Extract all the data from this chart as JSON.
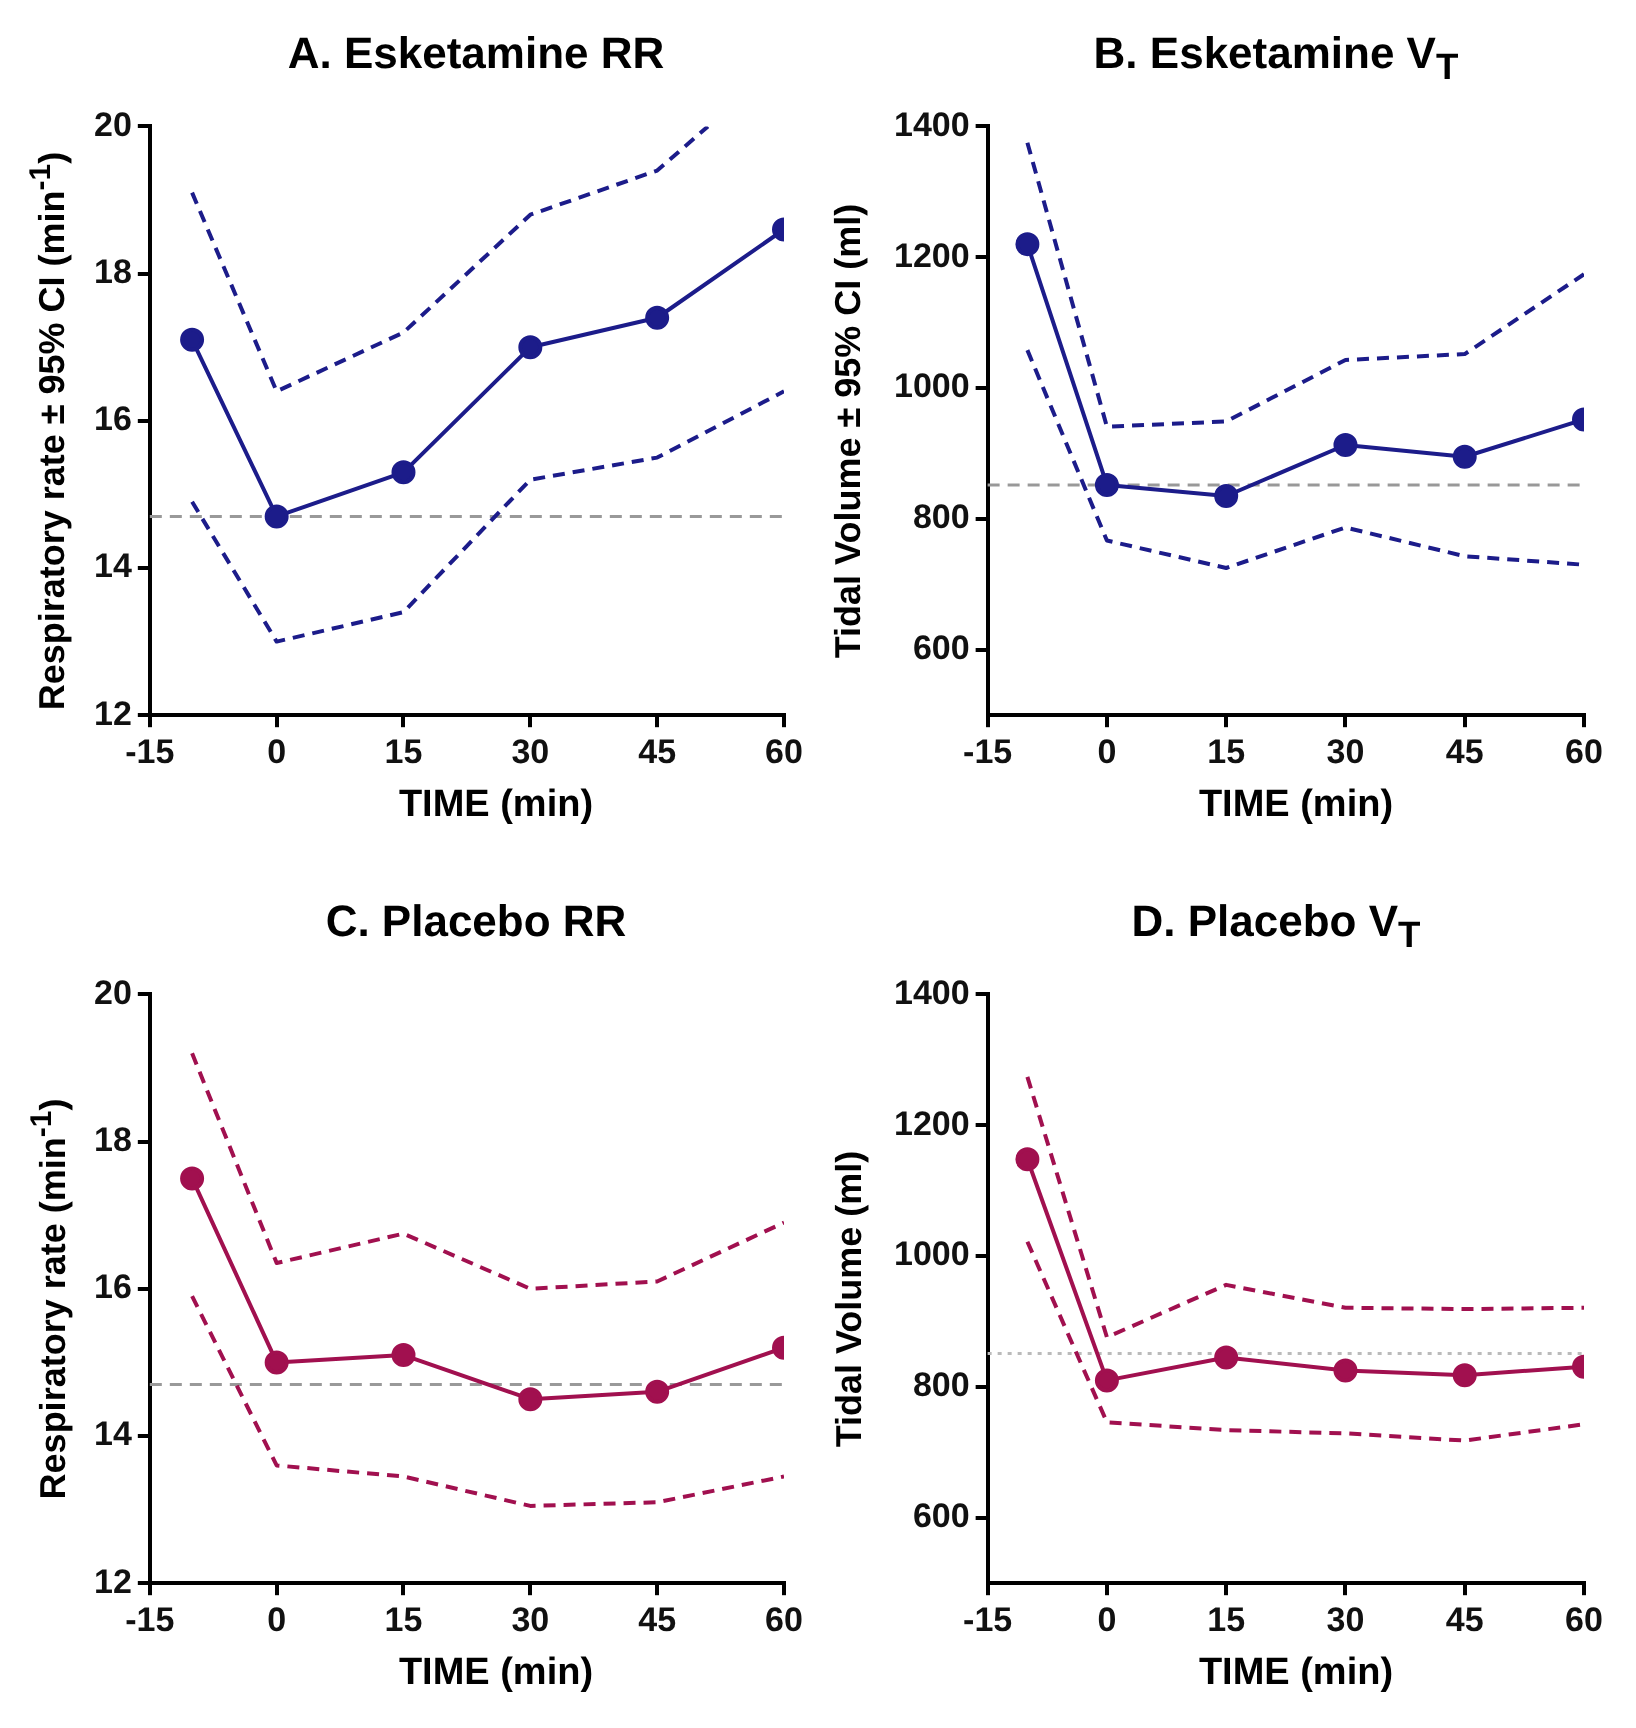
{
  "chart_data": [
    {
      "type": "line",
      "title": "A. Esketamine RR",
      "xlabel": "TIME (min)",
      "ylabel": "Respiratory rate ± 95% CI (min$^{-1}$)",
      "x": [
        -10,
        0,
        15,
        30,
        45,
        60
      ],
      "xlim": [
        -15,
        60
      ],
      "xticks": [
        -15,
        0,
        15,
        30,
        45,
        60
      ],
      "ylim": [
        12,
        20
      ],
      "yticks": [
        12,
        14,
        16,
        18,
        20
      ],
      "grid": false,
      "legend": false,
      "series": [
        {
          "color": "#1c1c8a",
          "values": [
            17.1,
            14.7,
            15.3,
            17.0,
            17.4,
            18.6
          ],
          "marker": "circle",
          "line_style": "solid"
        },
        {
          "color": "#1c1c8a",
          "x": [
            -10,
            0,
            15,
            30,
            45,
            51
          ],
          "values": [
            19.1,
            16.4,
            17.2,
            18.8,
            19.4,
            20.0
          ],
          "marker": "none",
          "line_style": "dashed"
        },
        {
          "color": "#1c1c8a",
          "values": [
            14.9,
            13.0,
            13.4,
            15.2,
            15.5,
            16.4
          ],
          "marker": "none",
          "line_style": "dashed"
        }
      ],
      "ref_lines": [
        {
          "axis": "y",
          "value": 14.7,
          "color": "#999999",
          "line_style": "dashed"
        }
      ]
    },
    {
      "type": "line",
      "title": "B. Esketamine V$_{T}$",
      "xlabel": "TIME (min)",
      "ylabel": "Tidal Volume ± 95% CI (ml)",
      "x": [
        -10,
        0,
        15,
        30,
        45,
        60
      ],
      "xlim": [
        -15,
        60
      ],
      "xticks": [
        -15,
        0,
        15,
        30,
        45,
        60
      ],
      "ylim": [
        500,
        1400
      ],
      "yticks": [
        600,
        800,
        1000,
        1200,
        1400
      ],
      "grid": false,
      "legend": false,
      "series": [
        {
          "color": "#1c1c8a",
          "values": [
            1220,
            852,
            835,
            913,
            895,
            952
          ],
          "marker": "circle",
          "line_style": "solid"
        },
        {
          "color": "#1c1c8a",
          "values": [
            1375,
            941,
            949,
            1043,
            1052,
            1174
          ],
          "marker": "none",
          "line_style": "dashed"
        },
        {
          "color": "#1c1c8a",
          "values": [
            1058,
            767,
            725,
            787,
            743,
            730
          ],
          "marker": "none",
          "line_style": "dashed"
        }
      ],
      "ref_lines": [
        {
          "axis": "y",
          "value": 852,
          "color": "#999999",
          "line_style": "dashed"
        }
      ]
    },
    {
      "type": "line",
      "title": "C. Placebo RR",
      "xlabel": "TIME (min)",
      "ylabel": "Respiratory rate (min$^{-1}$)",
      "x": [
        -10,
        0,
        15,
        30,
        45,
        60
      ],
      "xlim": [
        -15,
        60
      ],
      "xticks": [
        -15,
        0,
        15,
        30,
        45,
        60
      ],
      "ylim": [
        12,
        20
      ],
      "yticks": [
        12,
        14,
        16,
        18,
        20
      ],
      "grid": false,
      "legend": false,
      "series": [
        {
          "color": "#a1104f",
          "values": [
            17.5,
            15.0,
            15.1,
            14.5,
            14.6,
            15.2
          ],
          "marker": "circle",
          "line_style": "solid"
        },
        {
          "color": "#a1104f",
          "values": [
            19.2,
            16.35,
            16.75,
            16.0,
            16.1,
            16.9
          ],
          "marker": "none",
          "line_style": "dashed"
        },
        {
          "color": "#a1104f",
          "values": [
            15.9,
            13.6,
            13.45,
            13.05,
            13.1,
            13.45
          ],
          "marker": "none",
          "line_style": "dashed"
        }
      ],
      "ref_lines": [
        {
          "axis": "y",
          "value": 14.7,
          "color": "#999999",
          "line_style": "dashed"
        }
      ]
    },
    {
      "type": "line",
      "title": "D. Placebo V$_{T}$",
      "xlabel": "TIME (min)",
      "ylabel": "Tidal Volume (ml)",
      "x": [
        -10,
        0,
        15,
        30,
        45,
        60
      ],
      "xlim": [
        -15,
        60
      ],
      "xticks": [
        -15,
        0,
        15,
        30,
        45,
        60
      ],
      "ylim": [
        500,
        1400
      ],
      "yticks": [
        600,
        800,
        1000,
        1200,
        1400
      ],
      "grid": false,
      "legend": false,
      "series": [
        {
          "color": "#a1104f",
          "values": [
            1148,
            810,
            845,
            825,
            818,
            831
          ],
          "marker": "circle",
          "line_style": "solid"
        },
        {
          "color": "#a1104f",
          "values": [
            1274,
            876,
            956,
            921,
            919,
            921
          ],
          "marker": "none",
          "line_style": "dashed"
        },
        {
          "color": "#a1104f",
          "values": [
            1022,
            746,
            734,
            729,
            718,
            743
          ],
          "marker": "none",
          "line_style": "dashed"
        }
      ],
      "ref_lines": [
        {
          "axis": "y",
          "value": 851,
          "color": "#bbbbbb",
          "line_style": "dotted"
        }
      ]
    }
  ]
}
